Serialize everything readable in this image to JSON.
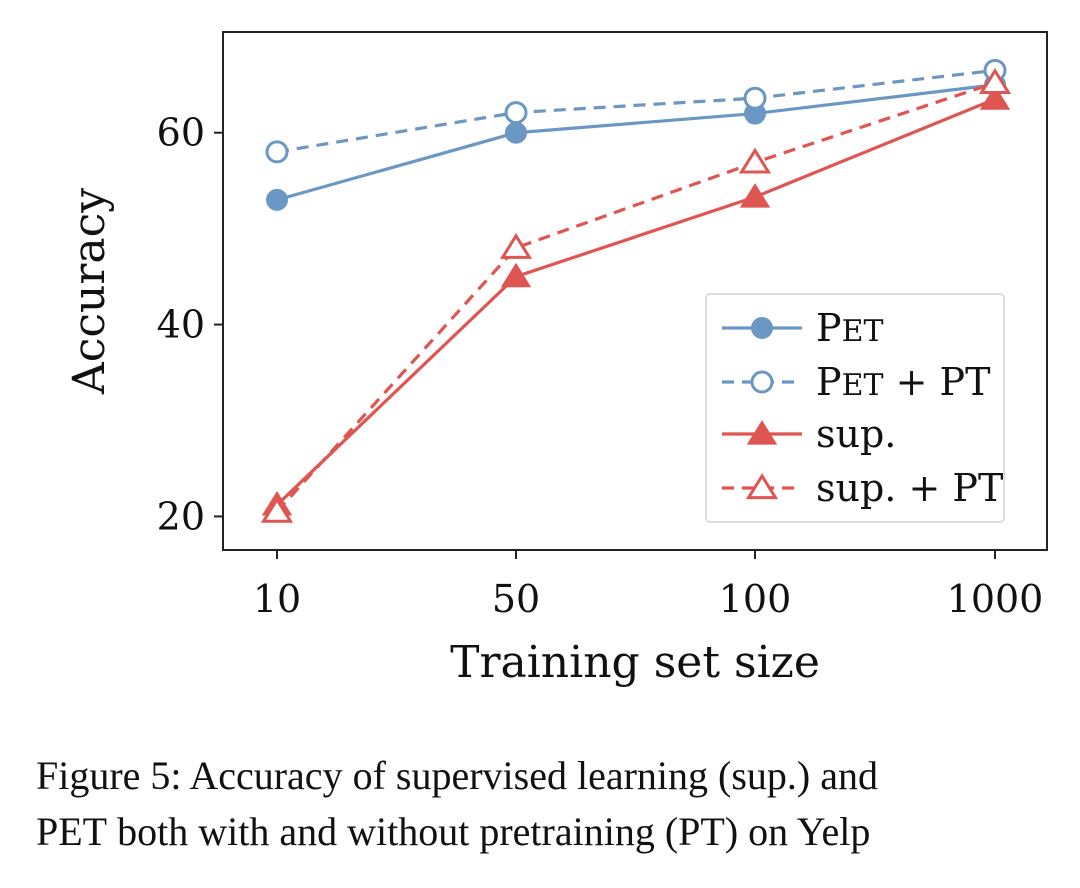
{
  "chart_data": {
    "type": "line",
    "title": "",
    "xlabel": "Training set size",
    "ylabel": "Accuracy",
    "x": [
      "10",
      "50",
      "100",
      "1000"
    ],
    "yticks": [
      20,
      40,
      60
    ],
    "ylim": [
      16.5,
      70.5
    ],
    "grid": false,
    "legend_position": "lower-right",
    "series": [
      {
        "name": "PET",
        "name_small_caps": "ET",
        "name_lead": "P",
        "color": "#6b97c4",
        "line_style": "solid",
        "marker": "circle",
        "marker_fill": "filled",
        "values": [
          53.0,
          60.0,
          62.0,
          65.0
        ]
      },
      {
        "name": "PET + PT",
        "name_lead": "P",
        "name_small_caps": "ET",
        "name_tail": " + PT",
        "color": "#6b97c4",
        "line_style": "dashed",
        "marker": "circle",
        "marker_fill": "hollow",
        "values": [
          58.0,
          62.1,
          63.6,
          66.5
        ]
      },
      {
        "name": "sup.",
        "color": "#de5551",
        "line_style": "solid",
        "marker": "triangle",
        "marker_fill": "filled",
        "values": [
          21.2,
          45.0,
          53.3,
          63.5
        ]
      },
      {
        "name": "sup. + PT",
        "color": "#de5551",
        "line_style": "dashed",
        "marker": "triangle",
        "marker_fill": "hollow",
        "values": [
          20.5,
          48.0,
          56.9,
          65.2
        ]
      }
    ]
  },
  "caption": {
    "line1": "Figure 5:  Accuracy of supervised learning (sup.)  and",
    "line2_lead": "P",
    "line2_small_caps": "ET",
    "line2_rest": " both with and without pretraining (PT) on Yelp"
  }
}
